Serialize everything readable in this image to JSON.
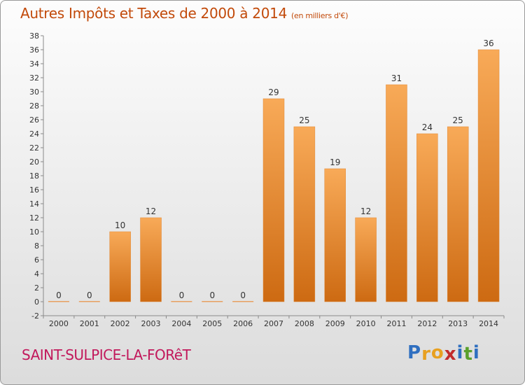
{
  "title": {
    "main": "Autres Impôts et Taxes de 2000 à 2014",
    "unit": "(en milliers d'€)"
  },
  "commune": "SAINT-SULPICE-LA-FORêT",
  "logo": {
    "letters": [
      "P",
      "r",
      "o",
      "x",
      "i",
      "t",
      "i"
    ],
    "colors": [
      "#2f6fc0",
      "#e8a020",
      "#e8a020",
      "#c22b2b",
      "#2f6fc0",
      "#5aa02c",
      "#2f6fc0"
    ]
  },
  "colors": {
    "bar_top": "#f8aa58",
    "bar_bottom": "#cd6a12",
    "title": "#c24a0a",
    "commune": "#c2185b"
  },
  "chart_data": {
    "type": "bar",
    "categories": [
      "2000",
      "2001",
      "2002",
      "2003",
      "2004",
      "2005",
      "2006",
      "2007",
      "2008",
      "2009",
      "2010",
      "2011",
      "2012",
      "2013",
      "2014"
    ],
    "values": [
      0,
      0,
      10,
      12,
      0,
      0,
      0,
      29,
      25,
      19,
      12,
      31,
      24,
      25,
      36
    ],
    "data_labels": [
      "0",
      "0",
      "10",
      "12",
      "0",
      "0",
      "0",
      "29",
      "25",
      "19",
      "12",
      "31",
      "24",
      "25",
      "36"
    ],
    "ylim": [
      -2,
      38
    ],
    "yticks": [
      "-2",
      "0",
      "2",
      "4",
      "6",
      "8",
      "10",
      "12",
      "14",
      "16",
      "18",
      "20",
      "22",
      "24",
      "26",
      "28",
      "30",
      "32",
      "34",
      "36",
      "38"
    ],
    "grid": false,
    "legend": "none"
  }
}
